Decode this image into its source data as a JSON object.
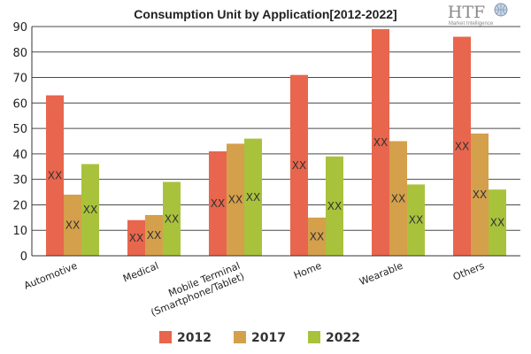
{
  "logo": {
    "mark": "HTF",
    "tagline": "Market Intelligence"
  },
  "chart_data": {
    "type": "bar",
    "title": "Consumption Unit by  Application[2012-2022]",
    "xlabel": "",
    "ylabel": "",
    "ylim": [
      0,
      90
    ],
    "yticks": [
      0,
      10,
      20,
      30,
      40,
      50,
      60,
      70,
      80,
      90
    ],
    "grid": true,
    "legend_position": "bottom",
    "categories": [
      "Automotive",
      "Medical",
      "Mobile Terminal\n(Smartphone/Tablet)",
      "Home",
      "Wearable",
      "Others"
    ],
    "series": [
      {
        "name": "2012",
        "color": "#e8664d",
        "values": [
          63,
          14,
          41,
          71,
          89,
          86
        ],
        "data_labels": [
          "XX",
          "XX",
          "XX",
          "XX",
          "XX",
          "XX"
        ]
      },
      {
        "name": "2017",
        "color": "#d4a04b",
        "values": [
          24,
          16,
          44,
          15,
          45,
          48
        ],
        "data_labels": [
          "XX",
          "XX",
          "XX",
          "XX",
          "XX",
          "XX"
        ]
      },
      {
        "name": "2022",
        "color": "#a9c23c",
        "values": [
          36,
          29,
          46,
          39,
          28,
          26
        ],
        "data_labels": [
          "XX",
          "XX",
          "XX",
          "XX",
          "XX",
          "XX"
        ]
      }
    ]
  }
}
